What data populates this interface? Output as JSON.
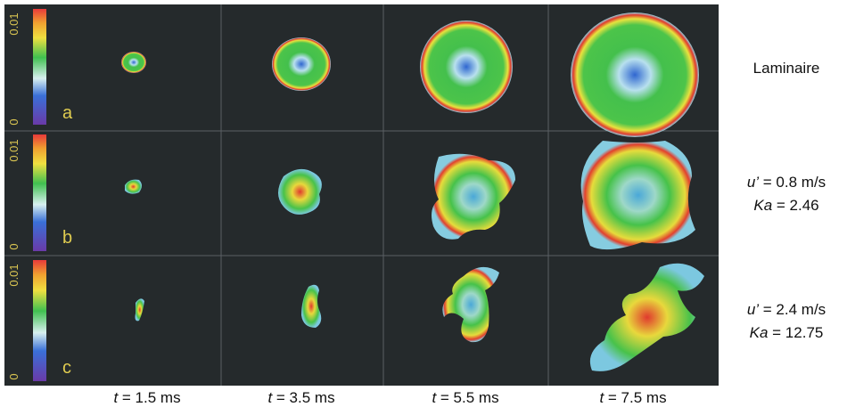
{
  "colorbar": {
    "top": "0.01",
    "bottom": "0"
  },
  "rows": [
    {
      "letter": "a",
      "label": [
        {
          "text": "Laminaire"
        }
      ]
    },
    {
      "letter": "b",
      "label": [
        {
          "var": "u’",
          "text": " = 0.8 m/s"
        },
        {
          "var": "Ka",
          "text": " = 2.46"
        }
      ]
    },
    {
      "letter": "c",
      "label": [
        {
          "var": "u’",
          "text": " = 2.4 m/s"
        },
        {
          "var": "Ka",
          "text": " = 12.75"
        }
      ]
    }
  ],
  "times": [
    {
      "var": "t",
      "text": " = 1.5 ms"
    },
    {
      "var": "t",
      "text": " = 3.5 ms"
    },
    {
      "var": "t",
      "text": " = 5.5 ms"
    },
    {
      "var": "t",
      "text": " = 7.5 ms"
    }
  ]
}
